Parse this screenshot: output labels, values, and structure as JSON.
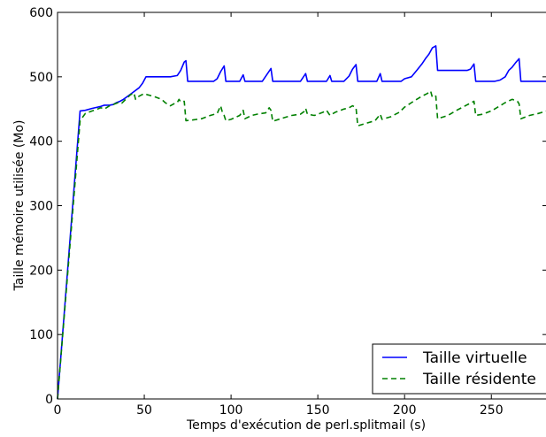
{
  "chart_data": {
    "type": "line",
    "title": "",
    "xlabel": "Temps d'exécution de perl.splitmail (s)",
    "ylabel": "Taille mémoire utilisée (Mo)",
    "xlim": [
      0,
      282
    ],
    "ylim": [
      0,
      600
    ],
    "xticks": [
      0,
      50,
      100,
      150,
      200,
      250
    ],
    "yticks": [
      0,
      100,
      200,
      300,
      400,
      500,
      600
    ],
    "grid": false,
    "legend_position": "lower-right",
    "series": [
      {
        "name": "Taille virtuelle",
        "color": "#0000ff",
        "dash": "solid",
        "points": [
          [
            0,
            0
          ],
          [
            13,
            447
          ],
          [
            16,
            448
          ],
          [
            20,
            451
          ],
          [
            25,
            454
          ],
          [
            27,
            456
          ],
          [
            30,
            456
          ],
          [
            32,
            457
          ],
          [
            34,
            460
          ],
          [
            36,
            462
          ],
          [
            38,
            465
          ],
          [
            41,
            471
          ],
          [
            44,
            477
          ],
          [
            47,
            483
          ],
          [
            49,
            490
          ],
          [
            51,
            500
          ],
          [
            55,
            500
          ],
          [
            60,
            500
          ],
          [
            65,
            500
          ],
          [
            69,
            502
          ],
          [
            71,
            510
          ],
          [
            73,
            523
          ],
          [
            74,
            525
          ],
          [
            75,
            493
          ],
          [
            80,
            493
          ],
          [
            90,
            493
          ],
          [
            92,
            497
          ],
          [
            94,
            508
          ],
          [
            96,
            517
          ],
          [
            97,
            493
          ],
          [
            100,
            493
          ],
          [
            105,
            493
          ],
          [
            107,
            503
          ],
          [
            108,
            493
          ],
          [
            112,
            493
          ],
          [
            118,
            493
          ],
          [
            121,
            505
          ],
          [
            123,
            513
          ],
          [
            124,
            493
          ],
          [
            130,
            493
          ],
          [
            140,
            493
          ],
          [
            143,
            505
          ],
          [
            144,
            493
          ],
          [
            150,
            493
          ],
          [
            155,
            493
          ],
          [
            157,
            502
          ],
          [
            158,
            493
          ],
          [
            165,
            493
          ],
          [
            168,
            501
          ],
          [
            170,
            512
          ],
          [
            172,
            519
          ],
          [
            173,
            493
          ],
          [
            180,
            493
          ],
          [
            184,
            493
          ],
          [
            186,
            505
          ],
          [
            187,
            493
          ],
          [
            195,
            493
          ],
          [
            198,
            493
          ],
          [
            200,
            497
          ],
          [
            204,
            500
          ],
          [
            207,
            510
          ],
          [
            210,
            520
          ],
          [
            212,
            528
          ],
          [
            214,
            535
          ],
          [
            216,
            545
          ],
          [
            218,
            548
          ],
          [
            219,
            510
          ],
          [
            225,
            510
          ],
          [
            230,
            510
          ],
          [
            236,
            510
          ],
          [
            238,
            512
          ],
          [
            240,
            520
          ],
          [
            241,
            493
          ],
          [
            245,
            493
          ],
          [
            250,
            493
          ],
          [
            252,
            493
          ],
          [
            255,
            495
          ],
          [
            258,
            500
          ],
          [
            260,
            510
          ],
          [
            262,
            515
          ],
          [
            264,
            522
          ],
          [
            266,
            528
          ],
          [
            267,
            493
          ],
          [
            272,
            493
          ],
          [
            282,
            493
          ]
        ]
      },
      {
        "name": "Taille résidente",
        "color": "#008000",
        "dash": "dashed",
        "points": [
          [
            0,
            0
          ],
          [
            13,
            432
          ],
          [
            16,
            443
          ],
          [
            20,
            447
          ],
          [
            25,
            452
          ],
          [
            27,
            450
          ],
          [
            30,
            455
          ],
          [
            32,
            457
          ],
          [
            35,
            460
          ],
          [
            37,
            459
          ],
          [
            40,
            467
          ],
          [
            42,
            472
          ],
          [
            44,
            475
          ],
          [
            45,
            465
          ],
          [
            47,
            470
          ],
          [
            50,
            474
          ],
          [
            52,
            472
          ],
          [
            55,
            470
          ],
          [
            60,
            465
          ],
          [
            62,
            460
          ],
          [
            65,
            455
          ],
          [
            67,
            458
          ],
          [
            69,
            460
          ],
          [
            70,
            465
          ],
          [
            71,
            461
          ],
          [
            73,
            462
          ],
          [
            74,
            432
          ],
          [
            78,
            433
          ],
          [
            83,
            435
          ],
          [
            88,
            440
          ],
          [
            92,
            443
          ],
          [
            94,
            455
          ],
          [
            95,
            445
          ],
          [
            96,
            440
          ],
          [
            97,
            432
          ],
          [
            100,
            434
          ],
          [
            105,
            440
          ],
          [
            107,
            448
          ],
          [
            108,
            435
          ],
          [
            112,
            440
          ],
          [
            115,
            442
          ],
          [
            120,
            444
          ],
          [
            122,
            452
          ],
          [
            123,
            448
          ],
          [
            124,
            431
          ],
          [
            130,
            436
          ],
          [
            135,
            440
          ],
          [
            140,
            442
          ],
          [
            142,
            446
          ],
          [
            143,
            451
          ],
          [
            144,
            442
          ],
          [
            148,
            440
          ],
          [
            150,
            442
          ],
          [
            153,
            445
          ],
          [
            155,
            448
          ],
          [
            157,
            440
          ],
          [
            160,
            445
          ],
          [
            165,
            450
          ],
          [
            168,
            452
          ],
          [
            170,
            455
          ],
          [
            172,
            452
          ],
          [
            173,
            424
          ],
          [
            178,
            428
          ],
          [
            183,
            432
          ],
          [
            186,
            442
          ],
          [
            187,
            434
          ],
          [
            192,
            438
          ],
          [
            197,
            445
          ],
          [
            200,
            453
          ],
          [
            204,
            460
          ],
          [
            207,
            465
          ],
          [
            210,
            470
          ],
          [
            213,
            474
          ],
          [
            215,
            478
          ],
          [
            216,
            468
          ],
          [
            218,
            470
          ],
          [
            219,
            435
          ],
          [
            225,
            440
          ],
          [
            230,
            448
          ],
          [
            235,
            455
          ],
          [
            240,
            462
          ],
          [
            241,
            440
          ],
          [
            245,
            442
          ],
          [
            250,
            447
          ],
          [
            255,
            455
          ],
          [
            258,
            460
          ],
          [
            262,
            465
          ],
          [
            265,
            462
          ],
          [
            266,
            458
          ],
          [
            267,
            435
          ],
          [
            272,
            440
          ],
          [
            277,
            443
          ],
          [
            282,
            447
          ]
        ]
      }
    ]
  }
}
